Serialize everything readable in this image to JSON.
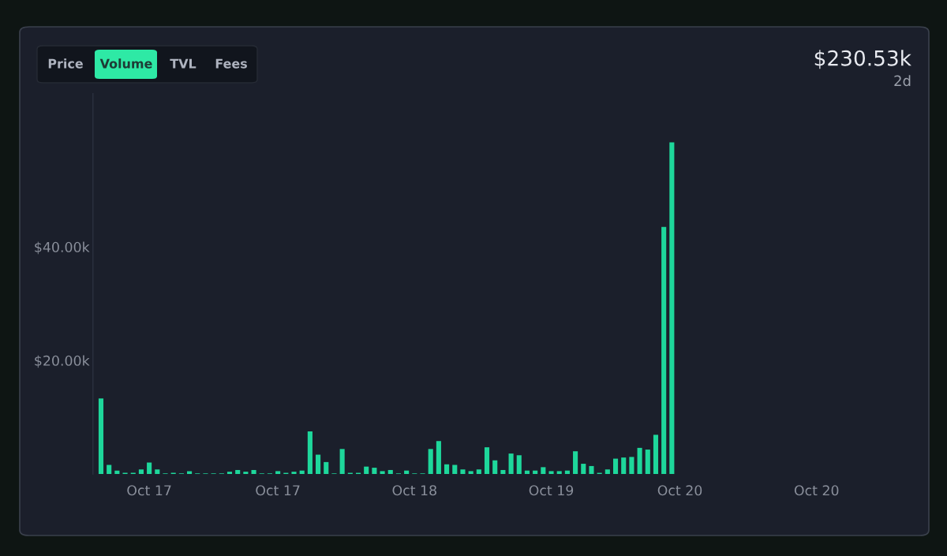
{
  "chart_data": {
    "type": "bar",
    "categories": [
      null,
      null,
      null,
      null,
      null,
      null,
      "Oct 17",
      null,
      null,
      null,
      null,
      null,
      null,
      null,
      null,
      null,
      null,
      null,
      null,
      null,
      null,
      null,
      "Oct 17",
      null,
      null,
      null,
      null,
      null,
      null,
      null,
      null,
      null,
      null,
      null,
      null,
      null,
      null,
      null,
      null,
      "Oct 18",
      null,
      null,
      null,
      null,
      null,
      null,
      null,
      null,
      null,
      null,
      null,
      null,
      null,
      null,
      null,
      null,
      "Oct 19",
      null,
      null,
      null,
      null,
      null,
      null,
      null,
      null,
      null,
      null,
      null,
      null,
      null,
      null,
      null,
      "Oct 20",
      null,
      null,
      null,
      null,
      null,
      null,
      null,
      null,
      null,
      null,
      null,
      null,
      null,
      null,
      null,
      null,
      "Oct 20",
      null,
      null,
      null,
      null,
      null,
      null,
      null,
      null,
      null,
      null,
      null
    ],
    "values": [
      13.3,
      1.6,
      0.6,
      0.2,
      0.2,
      0.8,
      2.0,
      0.8,
      0.1,
      0.2,
      0.1,
      0.5,
      0.1,
      0.1,
      0.1,
      0.1,
      0.4,
      0.7,
      0.4,
      0.7,
      0.1,
      0.1,
      0.5,
      0.2,
      0.4,
      0.6,
      7.5,
      3.4,
      2.1,
      0.1,
      4.4,
      0.2,
      0.2,
      1.3,
      1.1,
      0.5,
      0.7,
      0.1,
      0.6,
      0.1,
      0.1,
      4.4,
      5.8,
      1.7,
      1.6,
      0.8,
      0.5,
      0.8,
      4.7,
      2.4,
      0.7,
      3.6,
      3.3,
      0.6,
      0.6,
      1.2,
      0.5,
      0.5,
      0.6,
      4.0,
      1.8,
      1.4,
      0.2,
      0.8,
      2.7,
      2.9,
      3.0,
      4.6,
      4.3,
      6.9,
      43.5,
      58.4,
      null,
      null,
      null,
      null,
      null,
      null,
      null,
      null,
      null,
      null,
      null,
      null,
      null,
      null,
      null,
      null,
      null,
      null,
      null,
      null,
      null,
      null,
      null,
      null,
      null,
      null,
      null,
      null,
      null
    ],
    "color": "#1ed79b",
    "ylim": [
      0,
      67
    ],
    "yticks": [
      {
        "value": 20,
        "label": "$20.00k"
      },
      {
        "value": 40,
        "label": "$40.00k"
      }
    ],
    "annotations": [
      "Price",
      "Volume",
      "TVL",
      "Fees",
      "$230.53k",
      "2d"
    ]
  }
}
